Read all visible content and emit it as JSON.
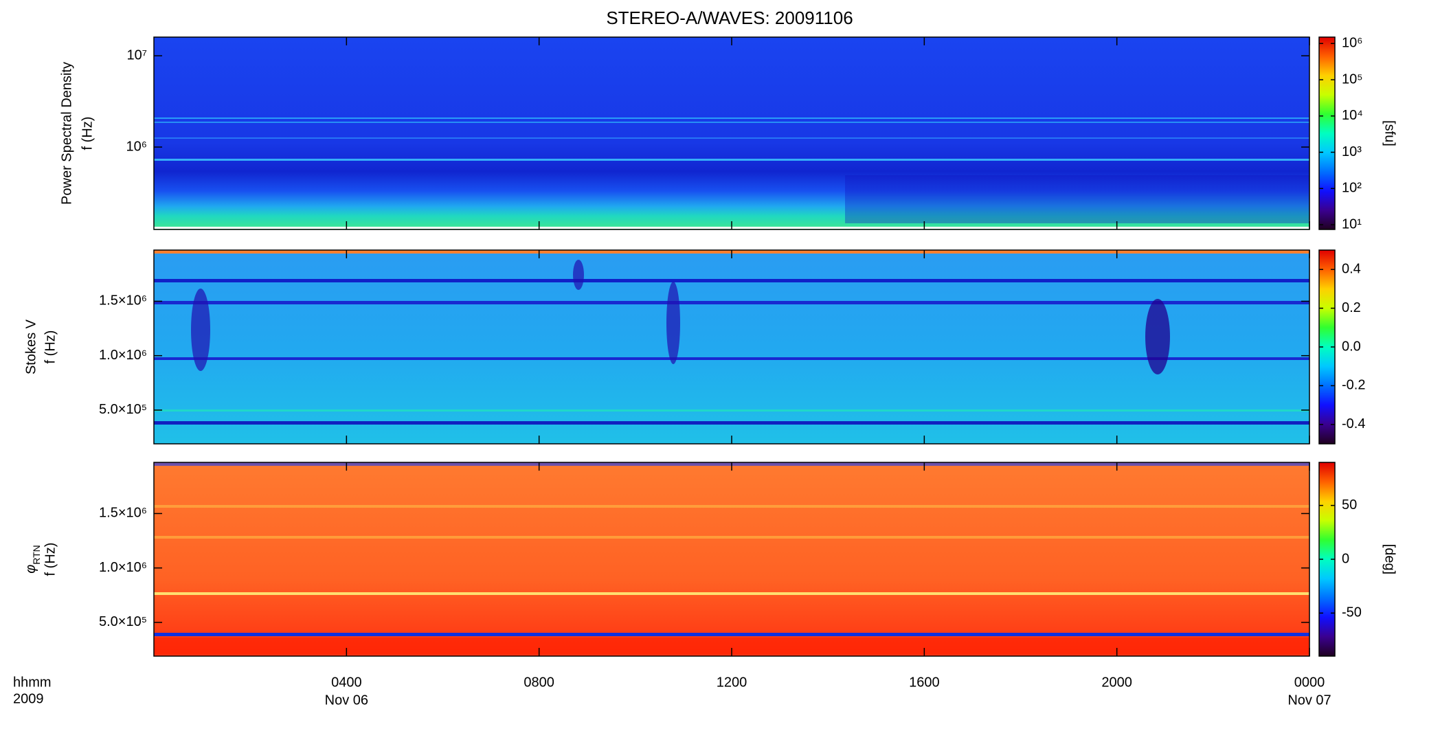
{
  "chart_data": [
    {
      "type": "spectrogram",
      "title": "STEREO-A/WAVES: 20091106",
      "ylabel": "Power Spectral Density",
      "ylabel_unit": "f (Hz)",
      "ylog": true,
      "ylim": [
        125000,
        16025000
      ],
      "yticks": [
        {
          "value": 1000000,
          "label": "10⁶"
        },
        {
          "value": 10000000,
          "label": "10⁷"
        }
      ],
      "clog": true,
      "clim": [
        7.4,
        1500000
      ],
      "cticks": [
        {
          "value": 10,
          "label": "10¹"
        },
        {
          "value": 100,
          "label": "10²"
        },
        {
          "value": 1000,
          "label": "10³"
        },
        {
          "value": 10000,
          "label": "10⁴"
        },
        {
          "value": 100000,
          "label": "10⁵"
        },
        {
          "value": 1000000,
          "label": "10⁶"
        }
      ],
      "colorbar_label": "[sfu]"
    },
    {
      "type": "spectrogram",
      "ylabel": "Stokes V",
      "ylabel_unit": "f (Hz)",
      "ylog": false,
      "ylim": [
        190000,
        1970000
      ],
      "yticks": [
        {
          "value": 500000,
          "label": "5.0×10⁵"
        },
        {
          "value": 1000000,
          "label": "1.0×10⁶"
        },
        {
          "value": 1500000,
          "label": "1.5×10⁶"
        }
      ],
      "clog": false,
      "clim": [
        -0.5,
        0.5
      ],
      "cticks": [
        -0.4,
        -0.2,
        {
          "value": 0,
          "label": "0.0"
        },
        0.2,
        0.4
      ]
    },
    {
      "type": "spectrogram",
      "ylabel_symbol": "φ",
      "ylabel_subscript": "RTN",
      "ylabel_unit": "f (Hz)",
      "ylog": false,
      "ylim": [
        190000,
        1970000
      ],
      "yticks": [
        {
          "value": 500000,
          "label": "5.0×10⁵"
        },
        {
          "value": 1000000,
          "label": "1.0×10⁶"
        },
        {
          "value": 1500000,
          "label": "1.5×10⁶"
        }
      ],
      "clog": false,
      "clim": [
        -90,
        90
      ],
      "cticks": [
        -50,
        0,
        50
      ],
      "colorbar_label": "[deg]",
      "xlabel": "hhmm",
      "xlabel_year": "2009",
      "xlim": [
        0,
        24
      ],
      "xticks": [
        {
          "value": 4,
          "label": "0400"
        },
        {
          "value": 8,
          "label": "0800"
        },
        {
          "value": 12,
          "label": "1200"
        },
        {
          "value": 16,
          "label": "1600"
        },
        {
          "value": 20,
          "label": "2000"
        },
        {
          "value": 24,
          "label": "0000"
        }
      ],
      "xtick_dates": [
        {
          "value": 4,
          "label": "Nov 06"
        },
        {
          "value": 24,
          "label": "Nov 07"
        }
      ]
    }
  ],
  "colormap": [
    "#200020",
    "#3a0090",
    "#1010ff",
    "#0070ff",
    "#00c8ff",
    "#00ffc0",
    "#30ff30",
    "#c8ff00",
    "#ffd000",
    "#ff6000",
    "#e00000"
  ]
}
